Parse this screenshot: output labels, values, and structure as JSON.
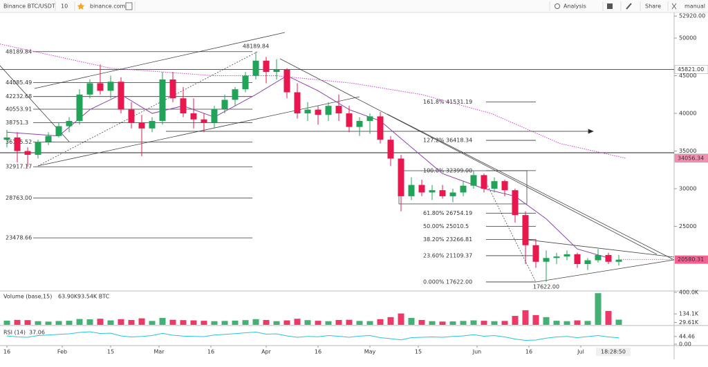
{
  "toolbar": {
    "symbol": "Binance BTC/USDT",
    "interval": "10",
    "site": "binance.com",
    "analysis": "Analysis",
    "share": "Share",
    "user": "manual"
  },
  "chart_data": {
    "type": "candlestick",
    "up_color": "#22a35a",
    "down_color": "#e8174d",
    "x": [
      0,
      3,
      6,
      9,
      12,
      15,
      18,
      21,
      24,
      27,
      30,
      33,
      36,
      39,
      42,
      45,
      48,
      51,
      54,
      57,
      60,
      63,
      66,
      69,
      72,
      75,
      78,
      81,
      84,
      87,
      90,
      93,
      96,
      99,
      102,
      105,
      108,
      111,
      114,
      117,
      120,
      123,
      126,
      129,
      132,
      135,
      138,
      141,
      144,
      147,
      150,
      153,
      156,
      159,
      162,
      165,
      168,
      171,
      174,
      177
    ],
    "open": [
      36500,
      36800,
      35000,
      34500,
      36200,
      37000,
      38300,
      39000,
      42500,
      44000,
      43000,
      44200,
      40500,
      38800,
      38000,
      39000,
      44500,
      42000,
      40000,
      39200,
      38800,
      40600,
      41800,
      43200,
      45000,
      47000,
      45500,
      45800,
      42800,
      40000,
      40500,
      39800,
      41000,
      40000,
      38200,
      39000,
      39600,
      36500,
      34000,
      29000,
      30500,
      29500,
      29800,
      29000,
      29500,
      30400,
      31800,
      30000,
      31000,
      29800,
      26500,
      22500,
      20300,
      20800,
      21000,
      21300,
      20000,
      20500,
      21200,
      20300
    ],
    "high": [
      37800,
      37500,
      35500,
      36500,
      37500,
      38800,
      39500,
      43200,
      44500,
      46500,
      45000,
      44800,
      41500,
      39800,
      39500,
      45500,
      45500,
      43500,
      42000,
      40000,
      41000,
      42500,
      43500,
      45500,
      48189.84,
      47500,
      47200,
      46000,
      44000,
      41500,
      41000,
      41500,
      42500,
      41000,
      39500,
      40000,
      40200,
      37000,
      34500,
      31500,
      31200,
      30500,
      30500,
      30000,
      31000,
      32399,
      32000,
      31500,
      31200,
      30000,
      27000,
      23300,
      21800,
      21500,
      21800,
      21500,
      20800,
      22000,
      21500,
      21200
    ],
    "low": [
      35500,
      33500,
      32900,
      34000,
      35800,
      36800,
      37500,
      38500,
      42000,
      42500,
      42000,
      40000,
      38000,
      34300,
      37500,
      38500,
      41500,
      39500,
      38000,
      37500,
      38000,
      40000,
      41000,
      42800,
      44500,
      44000,
      44500,
      42000,
      39300,
      39000,
      38500,
      39000,
      39000,
      37500,
      37000,
      37300,
      36000,
      33000,
      27000,
      28500,
      29000,
      28500,
      28700,
      28200,
      29000,
      30000,
      29500,
      29500,
      29000,
      25500,
      20000,
      19500,
      17622,
      20000,
      20500,
      19500,
      19200,
      20200,
      20000,
      19800
    ],
    "close": [
      36800,
      35000,
      34500,
      36200,
      37000,
      38300,
      39000,
      42500,
      44000,
      43000,
      44200,
      40500,
      38800,
      38000,
      39000,
      44500,
      42000,
      40000,
      39200,
      38800,
      40600,
      41800,
      43200,
      45000,
      47000,
      45500,
      45800,
      42800,
      40000,
      40500,
      39800,
      41000,
      40000,
      38200,
      39000,
      39600,
      36500,
      34000,
      29000,
      30500,
      29500,
      29800,
      29000,
      29500,
      30400,
      31800,
      30000,
      31000,
      29800,
      26500,
      22500,
      20300,
      20800,
      21000,
      21300,
      20000,
      20500,
      21200,
      20300,
      20580.31
    ],
    "xlim": [
      -2,
      193
    ],
    "ylim": [
      16514,
      53400
    ],
    "xticks": [
      {
        "value": 0,
        "label": "16"
      },
      {
        "value": 16,
        "label": "Feb"
      },
      {
        "value": 30,
        "label": "15"
      },
      {
        "value": 44,
        "label": "Mar"
      },
      {
        "value": 59,
        "label": "16"
      },
      {
        "value": 75,
        "label": "Apr"
      },
      {
        "value": 90,
        "label": "16"
      },
      {
        "value": 105,
        "label": "May"
      },
      {
        "value": 119,
        "label": "15"
      },
      {
        "value": 136,
        "label": "Jun"
      },
      {
        "value": 151,
        "label": "16"
      },
      {
        "value": 166,
        "label": "Jul"
      }
    ],
    "yticks": [
      25000,
      30000,
      35000,
      40000,
      45000,
      50000,
      {
        "value": 52920,
        "label": "52920.00"
      }
    ],
    "price_labels": [
      {
        "value": 45821,
        "label": "45821.00",
        "color": "#ffffff"
      },
      {
        "value": 34056.34,
        "label": "34056.34",
        "color": "#f48fb1"
      }
    ],
    "current_color": "#f06292",
    "low_label": "17622.00",
    "time": "18:28:50",
    "lines": [
      {
        "color": "#8e44ad",
        "dashed": false,
        "x": [
          0,
          15,
          24,
          33,
          42,
          51,
          60,
          72,
          81,
          90,
          99,
          108,
          117,
          126,
          138,
          147,
          156,
          165,
          174
        ],
        "values": [
          37500,
          37000,
          40500,
          42500,
          40000,
          41000,
          39500,
          42500,
          45000,
          43000,
          40500,
          39000,
          35500,
          32000,
          30000,
          29000,
          26000,
          22000,
          20800
        ]
      },
      {
        "color": "#d63fd6",
        "dashed": true,
        "x": [
          -2,
          30,
          60,
          78,
          100,
          120,
          140,
          160,
          179
        ],
        "values": [
          49200,
          46000,
          45000,
          45000,
          44000,
          42500,
          40000,
          36000,
          34056.34
        ]
      }
    ],
    "levels": [
      48189.84,
      44085.49,
      42232.68,
      40553.91,
      38751.3,
      36185.52,
      32917.17,
      {
        "value": 28763,
        "label": "28763.00"
      },
      23478.66
    ],
    "fib": [
      {
        "ratio": "161.8%",
        "price": 41531.19
      },
      {
        "ratio": "127.2%",
        "price": 36418.34
      },
      {
        "ratio": "100.0%",
        "price": {
          "value": 32399,
          "label": "32399.00"
        }
      },
      {
        "ratio": "61.80%",
        "price": 26754.19
      },
      {
        "ratio": "50.00%",
        "price": 25010.5
      },
      {
        "ratio": "38.20%",
        "price": 23266.81
      },
      {
        "ratio": "23.60%",
        "price": 21109.37
      },
      {
        "ratio": "0.000%",
        "price": {
          "value": 17622,
          "label": "17622.00"
        }
      }
    ],
    "volume": {
      "title": "Volume (base,15)",
      "current_label": "63.90K",
      "total_label": "93.54K BTC",
      "ylim": [
        0,
        400000
      ],
      "yticks": [
        {
          "value": 400000,
          "label": "400.0K"
        },
        {
          "value": 134100,
          "label": "134.1K"
        },
        {
          "value": 29610,
          "label": "29.61K"
        }
      ],
      "values": [
        52000,
        61000,
        58000,
        45000,
        40000,
        47000,
        50000,
        72000,
        68000,
        75000,
        55000,
        70000,
        60000,
        80000,
        48000,
        85000,
        62000,
        58000,
        55000,
        50000,
        45000,
        48000,
        52000,
        58000,
        70000,
        60000,
        45000,
        55000,
        75000,
        58000,
        50000,
        45000,
        60000,
        62000,
        48000,
        46000,
        70000,
        95000,
        140000,
        85000,
        60000,
        45000,
        40000,
        42000,
        48000,
        55000,
        50000,
        45000,
        48000,
        110000,
        180000,
        120000,
        95000,
        50000,
        45000,
        55000,
        48000,
        390000,
        170000,
        63900
      ]
    },
    "rsi": {
      "title": "RSI (14)",
      "color": "#26c6da",
      "ylim": [
        0,
        100
      ],
      "yticks": [
        44.46,
        {
          "value": 0,
          "label": "0.00"
        }
      ],
      "values": [
        48,
        42,
        40,
        50,
        53,
        57,
        60,
        68,
        72,
        62,
        64,
        48,
        42,
        45,
        50,
        63,
        52,
        47,
        45,
        44,
        53,
        57,
        61,
        66,
        70,
        58,
        60,
        48,
        40,
        45,
        43,
        50,
        46,
        40,
        47,
        50,
        38,
        32,
        25,
        38,
        40,
        42,
        40,
        45,
        48,
        55,
        46,
        50,
        42,
        30,
        22,
        24,
        35,
        42,
        45,
        38,
        44,
        50,
        42,
        37.06
      ]
    }
  }
}
